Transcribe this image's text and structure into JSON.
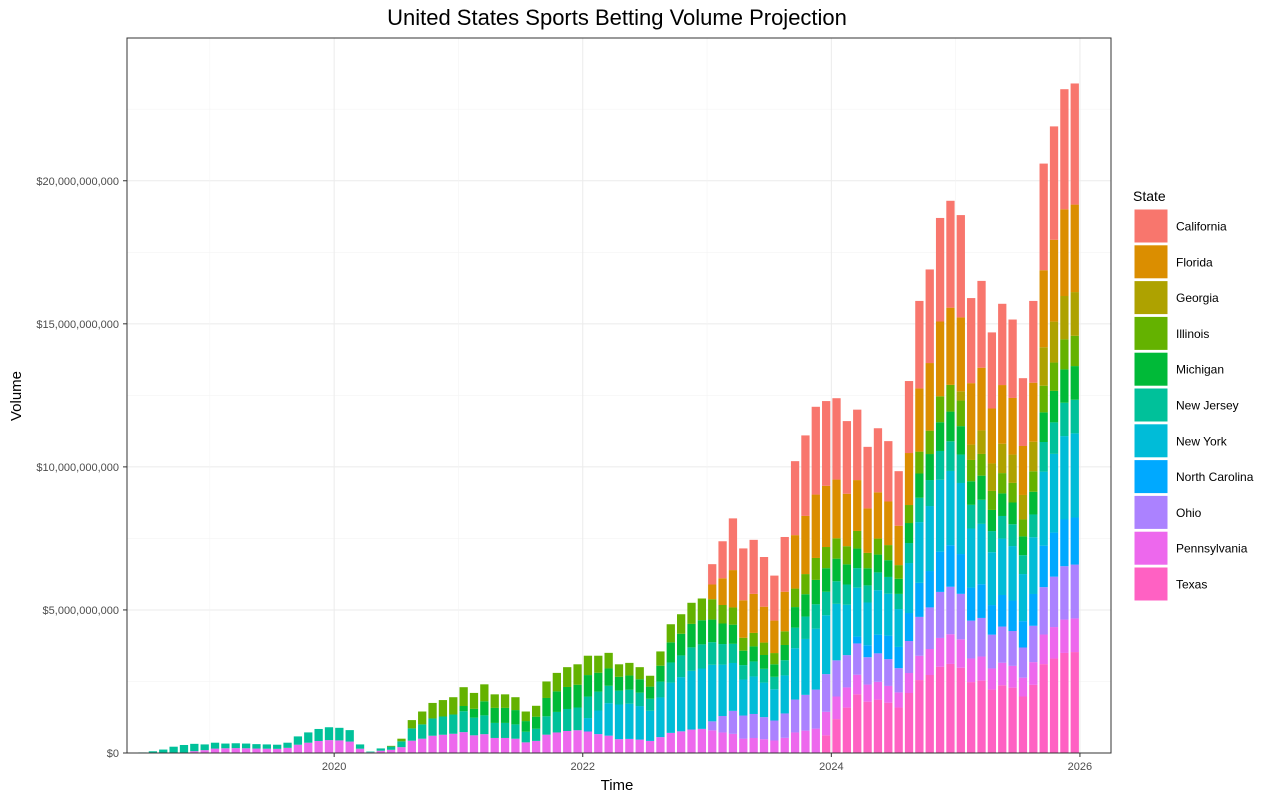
{
  "chart_data": {
    "type": "bar",
    "stacked": true,
    "title": "United States Sports Betting Volume Projection",
    "xlabel": "Time",
    "ylabel": "Volume",
    "x_ticks": [
      "2020",
      "2022",
      "2024",
      "2026"
    ],
    "y_ticks": [
      "$0",
      "$5,000,000,000",
      "$10,000,000,000",
      "$15,000,000,000",
      "$20,000,000,000"
    ],
    "x_range": [
      "2018-05",
      "2026-04"
    ],
    "ylim": [
      0,
      24500000000
    ],
    "grid": true,
    "legend": {
      "title": "State",
      "position": "right"
    },
    "start_month": "2018-06",
    "months_count": 91,
    "series": [
      {
        "name": "Texas",
        "color": "#FF61C3"
      },
      {
        "name": "Pennsylvania",
        "color": "#ED68ED"
      },
      {
        "name": "Ohio",
        "color": "#AB82FF"
      },
      {
        "name": "North Carolina",
        "color": "#00A9FF"
      },
      {
        "name": "New York",
        "color": "#00BCD8"
      },
      {
        "name": "New Jersey",
        "color": "#00C19A"
      },
      {
        "name": "Michigan",
        "color": "#00BA38"
      },
      {
        "name": "Illinois",
        "color": "#64B200"
      },
      {
        "name": "Georgia",
        "color": "#AEA200"
      },
      {
        "name": "Florida",
        "color": "#DB8E00"
      },
      {
        "name": "California",
        "color": "#F8766D"
      }
    ],
    "totals": [
      20000000.0,
      60000000.0,
      120000000.0,
      220000000.0,
      280000000.0,
      320000000.0,
      300000000.0,
      360000000.0,
      330000000.0,
      340000000.0,
      330000000.0,
      310000000.0,
      300000000.0,
      290000000.0,
      360000000.0,
      580000000.0,
      720000000.0,
      840000000.0,
      900000000.0,
      880000000.0,
      800000000.0,
      300000000.0,
      50000000.0,
      160000000.0,
      250000000.0,
      500000000.0,
      1150000000.0,
      1450000000.0,
      1750000000.0,
      1850000000.0,
      1950000000.0,
      2300000000.0,
      2100000000.0,
      2400000000.0,
      2050000000.0,
      2050000000.0,
      1950000000.0,
      1450000000.0,
      1650000000.0,
      2500000000.0,
      2800000000.0,
      3000000000.0,
      3100000000.0,
      3400000000.0,
      3400000000.0,
      3500000000.0,
      3100000000.0,
      3150000000.0,
      3000000000.0,
      2700000000.0,
      3550000000.0,
      4500000000.0,
      4850000000.0,
      5250000000.0,
      5400000000.0,
      6600000000.0,
      7400000000.0,
      8200000000.0,
      7150000000.0,
      7450000000.0,
      6850000000.0,
      6200000000.0,
      7550000000.0,
      10200000000.0,
      11100000000.0,
      12100000000.0,
      12300000000.0,
      12400000000.0,
      11600000000.0,
      12000000000.0,
      10700000000.0,
      11350000000.0,
      10900000000.0,
      9850000000.0,
      13000000000.0,
      15800000000.0,
      16900000000.0,
      18700000000.0,
      19300000000.0,
      18800000000.0,
      15900000000.0,
      16500000000.0,
      14700000000.0,
      15700000000.0,
      15150000000.0,
      13100000000.0,
      15800000000.0,
      20600000000.0,
      21900000000.0,
      23200000000.0,
      23400000000.0
    ],
    "launch_months": {
      "Texas": "2023-12",
      "Pennsylvania": "2018-11",
      "Ohio": "2023-01",
      "North Carolina": "2024-03",
      "New York": "2022-01",
      "New Jersey": "2018-06",
      "Michigan": "2021-01",
      "Illinois": "2020-06",
      "Georgia": "2025-01",
      "Florida": "2023-01",
      "California": "2023-01"
    }
  }
}
